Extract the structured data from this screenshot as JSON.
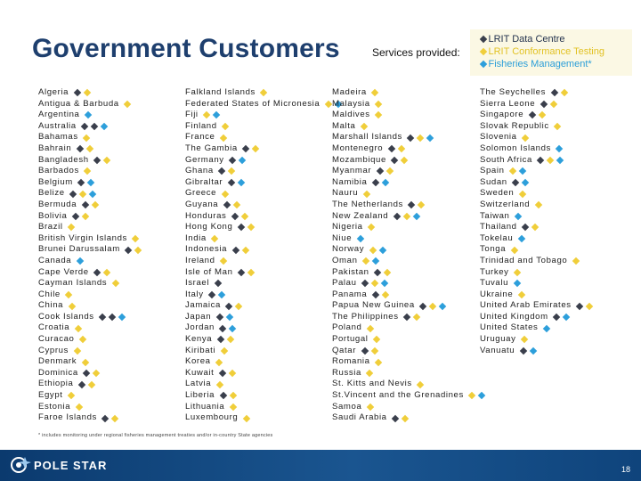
{
  "title": "Government Customers",
  "services_label": "Services provided:",
  "legend": [
    {
      "label": "LRIT Data Centre",
      "color": "#23324d",
      "marker": "d"
    },
    {
      "label": "LRIT Conformance Testing",
      "color": "#e2c225",
      "marker": "y"
    },
    {
      "label": "Fisheries Management*",
      "color": "#2b9ed8",
      "marker": "b"
    }
  ],
  "columns": [
    [
      {
        "name": "Algeria",
        "services": [
          "d",
          "y"
        ]
      },
      {
        "name": "Antigua & Barbuda",
        "services": [
          "y"
        ]
      },
      {
        "name": "Argentina",
        "services": [
          "b"
        ]
      },
      {
        "name": "Australia",
        "services": [
          "d",
          "d",
          "b"
        ]
      },
      {
        "name": "Bahamas",
        "services": [
          "y"
        ]
      },
      {
        "name": "Bahrain",
        "services": [
          "d",
          "y"
        ]
      },
      {
        "name": "Bangladesh",
        "services": [
          "d",
          "y"
        ]
      },
      {
        "name": "Barbados",
        "services": [
          "y"
        ]
      },
      {
        "name": "Belgium",
        "services": [
          "d",
          "b"
        ]
      },
      {
        "name": "Belize",
        "services": [
          "d",
          "y",
          "b"
        ]
      },
      {
        "name": "Bermuda",
        "services": [
          "d",
          "y"
        ]
      },
      {
        "name": "Bolivia",
        "services": [
          "d",
          "y"
        ]
      },
      {
        "name": "Brazil",
        "services": [
          "y"
        ]
      },
      {
        "name": "British Virgin Islands",
        "services": [
          "y"
        ]
      },
      {
        "name": "Brunei Darussalam",
        "services": [
          "d",
          "y"
        ]
      },
      {
        "name": "Canada",
        "services": [
          "b"
        ]
      },
      {
        "name": "Cape Verde",
        "services": [
          "d",
          "y"
        ]
      },
      {
        "name": "Cayman Islands",
        "services": [
          "y"
        ]
      },
      {
        "name": "Chile",
        "services": [
          "y"
        ]
      },
      {
        "name": "China",
        "services": [
          "y"
        ]
      },
      {
        "name": "Cook Islands",
        "services": [
          "d",
          "d",
          "b"
        ]
      },
      {
        "name": "Croatia",
        "services": [
          "y"
        ]
      },
      {
        "name": "Curacao",
        "services": [
          "y"
        ]
      },
      {
        "name": "Cyprus",
        "services": [
          "y"
        ]
      },
      {
        "name": "Denmark",
        "services": [
          "y"
        ]
      },
      {
        "name": "Dominica",
        "services": [
          "d",
          "y"
        ]
      },
      {
        "name": "Ethiopia",
        "services": [
          "d",
          "y"
        ]
      },
      {
        "name": "Egypt",
        "services": [
          "y"
        ]
      },
      {
        "name": "Estonia",
        "services": [
          "y"
        ]
      },
      {
        "name": "Faroe Islands",
        "services": [
          "d",
          "y"
        ]
      }
    ],
    [
      {
        "name": "Falkland Islands",
        "services": [
          "y"
        ]
      },
      {
        "name": "Federated States of Micronesia",
        "services": [
          "y",
          "b"
        ]
      },
      {
        "name": "Fiji",
        "services": [
          "y",
          "b"
        ]
      },
      {
        "name": "Finland",
        "services": [
          "y"
        ]
      },
      {
        "name": "France",
        "services": [
          "y"
        ]
      },
      {
        "name": "The Gambia",
        "services": [
          "d",
          "y"
        ]
      },
      {
        "name": "Germany",
        "services": [
          "d",
          "b"
        ]
      },
      {
        "name": "Ghana",
        "services": [
          "d",
          "y"
        ]
      },
      {
        "name": "Gibraltar",
        "services": [
          "d",
          "b"
        ]
      },
      {
        "name": "Greece",
        "services": [
          "y"
        ]
      },
      {
        "name": "Guyana",
        "services": [
          "d",
          "y"
        ]
      },
      {
        "name": "Honduras",
        "services": [
          "d",
          "y"
        ]
      },
      {
        "name": "Hong Kong",
        "services": [
          "d",
          "y"
        ]
      },
      {
        "name": "India",
        "services": [
          "y"
        ]
      },
      {
        "name": "Indonesia",
        "services": [
          "d",
          "y"
        ]
      },
      {
        "name": "Ireland",
        "services": [
          "y"
        ]
      },
      {
        "name": "Isle of Man",
        "services": [
          "d",
          "y"
        ]
      },
      {
        "name": "Israel",
        "services": [
          "d"
        ]
      },
      {
        "name": "Italy",
        "services": [
          "d",
          "b"
        ]
      },
      {
        "name": "Jamaica",
        "services": [
          "d",
          "y"
        ]
      },
      {
        "name": "Japan",
        "services": [
          "d",
          "b"
        ]
      },
      {
        "name": "Jordan",
        "services": [
          "d",
          "b"
        ]
      },
      {
        "name": "Kenya",
        "services": [
          "d",
          "y"
        ]
      },
      {
        "name": "Kiribati",
        "services": [
          "y"
        ]
      },
      {
        "name": "Korea",
        "services": [
          "y"
        ]
      },
      {
        "name": "Kuwait",
        "services": [
          "d",
          "y"
        ]
      },
      {
        "name": "Latvia",
        "services": [
          "y"
        ]
      },
      {
        "name": "Liberia",
        "services": [
          "d",
          "y"
        ]
      },
      {
        "name": "Lithuania",
        "services": [
          "y"
        ]
      },
      {
        "name": "Luxembourg",
        "services": [
          "y"
        ]
      }
    ],
    [
      {
        "name": "Madeira",
        "services": [
          "y"
        ]
      },
      {
        "name": "Malaysia",
        "services": [
          "y"
        ]
      },
      {
        "name": "Maldives",
        "services": [
          "y"
        ]
      },
      {
        "name": "Malta",
        "services": [
          "y"
        ]
      },
      {
        "name": "Marshall Islands",
        "services": [
          "d",
          "y",
          "b"
        ]
      },
      {
        "name": "Montenegro",
        "services": [
          "d",
          "y"
        ]
      },
      {
        "name": "Mozambique",
        "services": [
          "d",
          "y"
        ]
      },
      {
        "name": "Myanmar",
        "services": [
          "d",
          "y"
        ]
      },
      {
        "name": "Namibia",
        "services": [
          "d",
          "b"
        ]
      },
      {
        "name": "Nauru",
        "services": [
          "y"
        ]
      },
      {
        "name": "The Netherlands",
        "services": [
          "d",
          "y"
        ]
      },
      {
        "name": "New Zealand",
        "services": [
          "d",
          "y",
          "b"
        ]
      },
      {
        "name": "Nigeria",
        "services": [
          "y"
        ]
      },
      {
        "name": "Niue",
        "services": [
          "b"
        ]
      },
      {
        "name": "Norway",
        "services": [
          "y",
          "b"
        ]
      },
      {
        "name": "Oman",
        "services": [
          "y",
          "b"
        ]
      },
      {
        "name": "Pakistan",
        "services": [
          "d",
          "y"
        ]
      },
      {
        "name": "Palau",
        "services": [
          "d",
          "y",
          "b"
        ]
      },
      {
        "name": "Panama",
        "services": [
          "d",
          "y"
        ]
      },
      {
        "name": "Papua New Guinea",
        "services": [
          "d",
          "y",
          "b"
        ]
      },
      {
        "name": "The Philippines",
        "services": [
          "d",
          "y"
        ]
      },
      {
        "name": "Poland",
        "services": [
          "y"
        ]
      },
      {
        "name": "Portugal",
        "services": [
          "y"
        ]
      },
      {
        "name": "Qatar",
        "services": [
          "d",
          "y"
        ]
      },
      {
        "name": "Romania",
        "services": [
          "y"
        ]
      },
      {
        "name": "Russia",
        "services": [
          "y"
        ]
      },
      {
        "name": "St. Kitts and Nevis",
        "services": [
          "y"
        ]
      },
      {
        "name": "St.Vincent and the Grenadines",
        "services": [
          "y",
          "b"
        ]
      },
      {
        "name": "Samoa",
        "services": [
          "y"
        ]
      },
      {
        "name": "Saudi Arabia",
        "services": [
          "d",
          "y"
        ]
      }
    ],
    [
      {
        "name": "The Seychelles",
        "services": [
          "d",
          "y"
        ]
      },
      {
        "name": "Sierra Leone",
        "services": [
          "d",
          "y"
        ]
      },
      {
        "name": "Singapore",
        "services": [
          "d",
          "y"
        ]
      },
      {
        "name": "Slovak Republic",
        "services": [
          "y"
        ]
      },
      {
        "name": "Slovenia",
        "services": [
          "y"
        ]
      },
      {
        "name": "Solomon Islands",
        "services": [
          "b"
        ]
      },
      {
        "name": "South Africa",
        "services": [
          "d",
          "y",
          "b"
        ]
      },
      {
        "name": "Spain",
        "services": [
          "y",
          "b"
        ]
      },
      {
        "name": "Sudan",
        "services": [
          "d",
          "b"
        ]
      },
      {
        "name": "Sweden",
        "services": [
          "y"
        ]
      },
      {
        "name": "Switzerland",
        "services": [
          "y"
        ]
      },
      {
        "name": "Taiwan",
        "services": [
          "b"
        ]
      },
      {
        "name": "Thailand",
        "services": [
          "d",
          "y"
        ]
      },
      {
        "name": "Tokelau",
        "services": [
          "b"
        ]
      },
      {
        "name": "Tonga",
        "services": [
          "y"
        ]
      },
      {
        "name": "Trinidad and Tobago",
        "services": [
          "y"
        ]
      },
      {
        "name": "Turkey",
        "services": [
          "y"
        ]
      },
      {
        "name": "Tuvalu",
        "services": [
          "b"
        ]
      },
      {
        "name": "Ukraine",
        "services": [
          "y"
        ]
      },
      {
        "name": "United Arab Emirates",
        "services": [
          "d",
          "y"
        ]
      },
      {
        "name": "United Kingdom",
        "services": [
          "d",
          "b"
        ]
      },
      {
        "name": "United States",
        "services": [
          "b"
        ]
      },
      {
        "name": "Uruguay",
        "services": [
          "y"
        ]
      },
      {
        "name": "Vanuatu",
        "services": [
          "d",
          "b"
        ]
      }
    ]
  ],
  "footnote": "* includes monitoring under regional fisheries management treaties and/or in-country State agencies",
  "footer": {
    "logo_text": "POLE STAR",
    "page_number": "18",
    "bar_color": "#0b3a6e"
  }
}
